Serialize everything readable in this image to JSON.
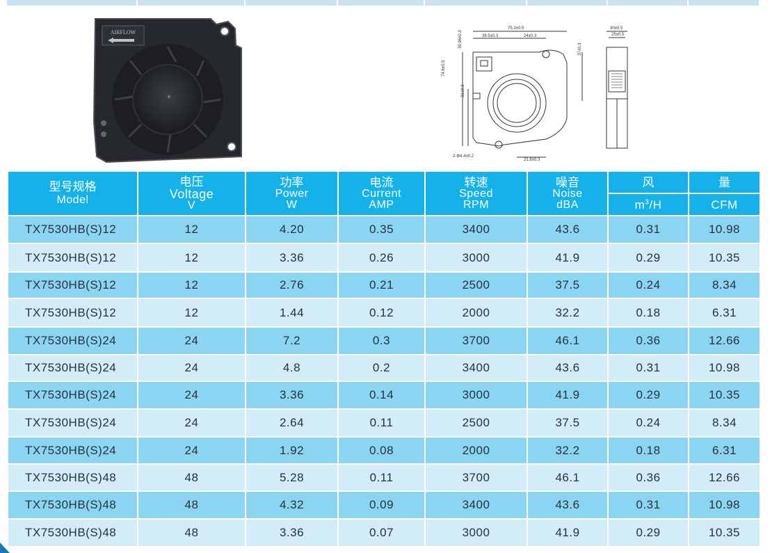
{
  "header": {
    "model_cn": "型号规格",
    "model_en": "Model",
    "voltage_cn": "电压",
    "voltage_en": "Voltage",
    "voltage_unit": "V",
    "power_cn": "功率",
    "power_en": "Power",
    "power_unit": "W",
    "current_cn": "电流",
    "current_en": "Current",
    "current_unit": "AMP",
    "speed_cn": "转速",
    "speed_en": "Speed",
    "speed_unit": "RPM",
    "noise_cn": "噪音",
    "noise_en": "Noise",
    "noise_unit": "dBA",
    "air_cn": "风",
    "flow_cn": "量",
    "m3h_unit_base": "m",
    "m3h_unit_exp": "3",
    "m3h_unit_tail": "/H",
    "cfm_unit": "CFM"
  },
  "product_photo": {
    "label": "AIRFLOW"
  },
  "drawing": {
    "dims": [
      "75.3±0.5",
      "38.5±0.3",
      "24±0.3",
      "39.96±0.3",
      "37±0.3",
      "74.6±0.5",
      "31±0.3",
      "2-Φ4.4±0.2",
      "21.8±0.3",
      "30±0.5",
      "25±0.5"
    ]
  },
  "rows": [
    [
      "TX7530HB(S)12",
      "12",
      "4.20",
      "0.35",
      "3400",
      "43.6",
      "0.31",
      "10.98"
    ],
    [
      "TX7530HB(S)12",
      "12",
      "3.36",
      "0.26",
      "3000",
      "41.9",
      "0.29",
      "10.35"
    ],
    [
      "TX7530HB(S)12",
      "12",
      "2.76",
      "0.21",
      "2500",
      "37.5",
      "0.24",
      "8.34"
    ],
    [
      "TX7530HB(S)12",
      "12",
      "1.44",
      "0.12",
      "2000",
      "32.2",
      "0.18",
      "6.31"
    ],
    [
      "TX7530HB(S)24",
      "24",
      "7.2",
      "0.3",
      "3700",
      "46.1",
      "0.36",
      "12.66"
    ],
    [
      "TX7530HB(S)24",
      "24",
      "4.8",
      "0.2",
      "3400",
      "43.6",
      "0.31",
      "10.98"
    ],
    [
      "TX7530HB(S)24",
      "24",
      "3.36",
      "0.14",
      "3000",
      "41.9",
      "0.29",
      "10.35"
    ],
    [
      "TX7530HB(S)24",
      "24",
      "2.64",
      "0.11",
      "2500",
      "37.5",
      "0.24",
      "8.34"
    ],
    [
      "TX7530HB(S)24",
      "24",
      "1.92",
      "0.08",
      "2000",
      "32.2",
      "0.18",
      "6.31"
    ],
    [
      "TX7530HB(S)48",
      "48",
      "5.28",
      "0.11",
      "3700",
      "46.1",
      "0.36",
      "12.66"
    ],
    [
      "TX7530HB(S)48",
      "48",
      "4.32",
      "0.09",
      "3400",
      "43.6",
      "0.31",
      "10.98"
    ],
    [
      "TX7530HB(S)48",
      "48",
      "3.36",
      "0.07",
      "3000",
      "41.9",
      "0.29",
      "10.35"
    ]
  ],
  "colors": {
    "header_bg": "#15b2ea",
    "row_dark": "#8bd4f2",
    "row_light": "#d2ecf8"
  }
}
